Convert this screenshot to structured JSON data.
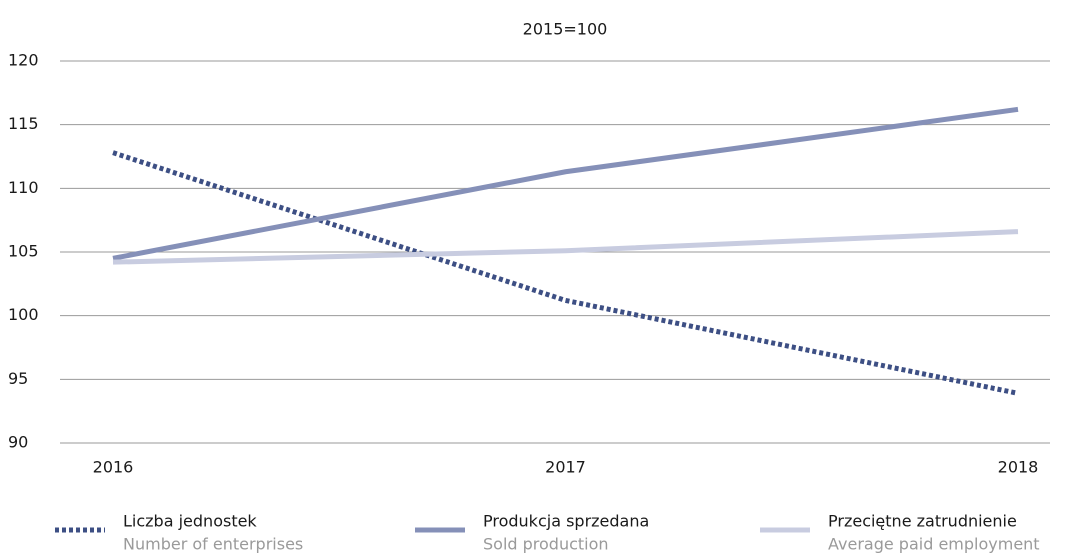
{
  "chart_data": {
    "type": "line",
    "subtitle": "2015=100",
    "categories": [
      "2016",
      "2017",
      "2018"
    ],
    "series": [
      {
        "name": "Liczba jednostek",
        "subname": "Number of enterprises",
        "color": "#3d4f84",
        "dashed": true,
        "values": [
          112.8,
          101.2,
          93.9
        ]
      },
      {
        "name": "Produkcja sprzedana",
        "subname": "Sold production",
        "color": "#8590b8",
        "dashed": false,
        "values": [
          104.5,
          111.3,
          116.2
        ]
      },
      {
        "name": "Przeciętne zatrudnienie",
        "subname": "Average paid employment",
        "color": "#c8cce0",
        "dashed": false,
        "values": [
          104.2,
          105.1,
          106.6
        ]
      }
    ],
    "ylim": [
      90,
      120
    ],
    "yticks": [
      90,
      95,
      100,
      105,
      110,
      115,
      120
    ],
    "grid": true
  }
}
